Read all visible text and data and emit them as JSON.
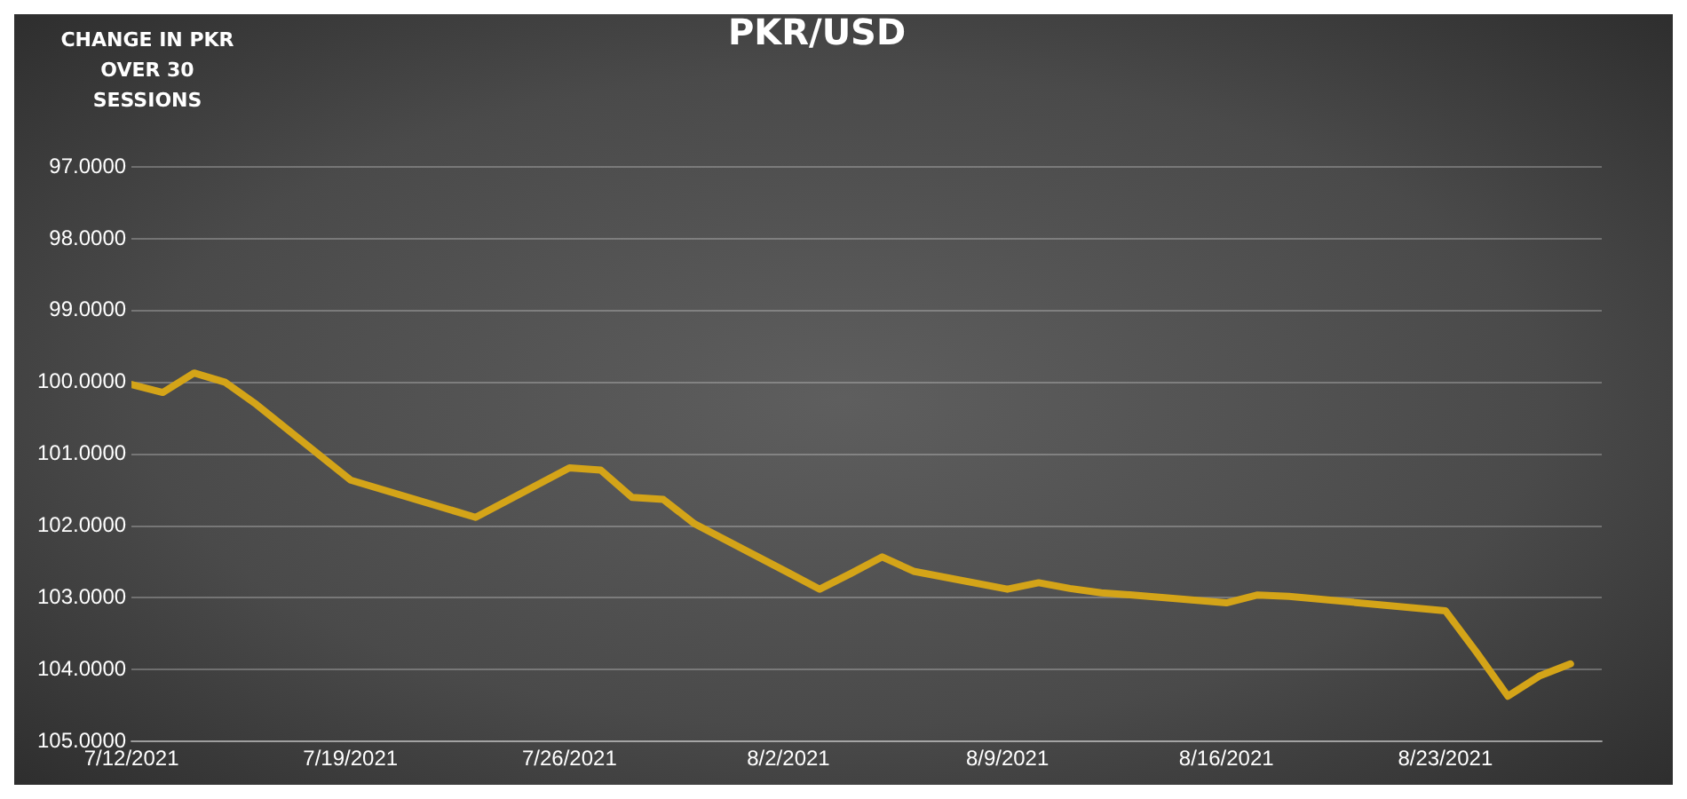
{
  "chart_data": {
    "type": "line",
    "title": "PKR/USD",
    "ylabel": "CHANGE IN PKR OVER 30 SESSIONS",
    "x": [
      "2021-07-12",
      "2021-07-13",
      "2021-07-14",
      "2021-07-15",
      "2021-07-16",
      "2021-07-19",
      "2021-07-23",
      "2021-07-26",
      "2021-07-27",
      "2021-07-28",
      "2021-07-29",
      "2021-07-30",
      "2021-08-02",
      "2021-08-03",
      "2021-08-04",
      "2021-08-05",
      "2021-08-06",
      "2021-08-09",
      "2021-08-10",
      "2021-08-11",
      "2021-08-12",
      "2021-08-13",
      "2021-08-16",
      "2021-08-17",
      "2021-08-18",
      "2021-08-23",
      "2021-08-24",
      "2021-08-25",
      "2021-08-26",
      "2021-08-27"
    ],
    "series": [
      {
        "color": "#d4a418",
        "values": [
          100.03,
          100.14,
          99.87,
          100.0,
          100.31,
          101.36,
          101.88,
          101.19,
          101.22,
          101.6,
          101.63,
          101.97,
          102.65,
          102.88,
          102.66,
          102.43,
          102.63,
          102.88,
          102.79,
          102.87,
          102.93,
          102.96,
          103.07,
          102.96,
          102.98,
          103.18,
          103.76,
          104.37,
          104.09,
          103.92
        ]
      }
    ],
    "xlim": [
      "2021-07-12",
      "2021-08-28"
    ],
    "xticks": [
      {
        "value": "2021-07-12",
        "label": "7/12/2021"
      },
      {
        "value": "2021-07-19",
        "label": "7/19/2021"
      },
      {
        "value": "2021-07-26",
        "label": "7/26/2021"
      },
      {
        "value": "2021-08-02",
        "label": "8/2/2021"
      },
      {
        "value": "2021-08-09",
        "label": "8/9/2021"
      },
      {
        "value": "2021-08-16",
        "label": "8/16/2021"
      },
      {
        "value": "2021-08-23",
        "label": "8/23/2021"
      }
    ],
    "ylim": [
      105,
      97
    ],
    "yticks": [
      {
        "value": 97,
        "label": "97.0000"
      },
      {
        "value": 98,
        "label": "98.0000"
      },
      {
        "value": 99,
        "label": "99.0000"
      },
      {
        "value": 100,
        "label": "100.0000"
      },
      {
        "value": 101,
        "label": "101.0000"
      },
      {
        "value": 102,
        "label": "102.0000"
      },
      {
        "value": 103,
        "label": "103.0000"
      },
      {
        "value": 104,
        "label": "104.0000"
      },
      {
        "value": 105,
        "label": "105.0000"
      }
    ],
    "grid": "y",
    "legend": false,
    "marker": "none",
    "line_style": "solid"
  }
}
